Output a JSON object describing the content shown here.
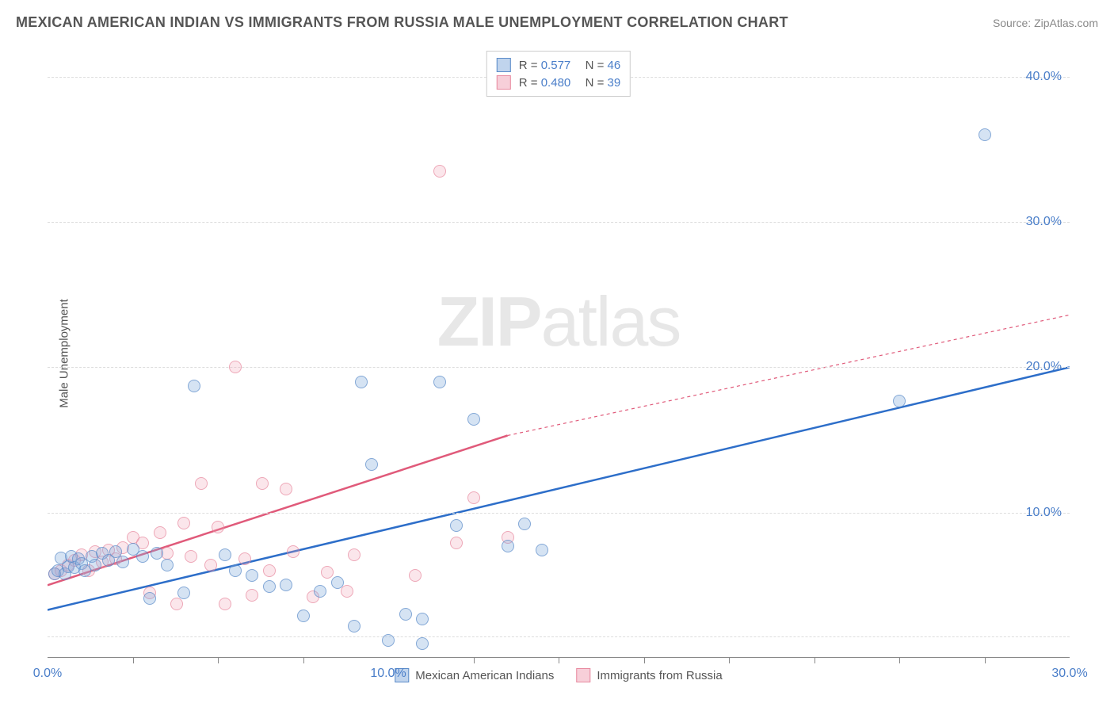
{
  "title": "MEXICAN AMERICAN INDIAN VS IMMIGRANTS FROM RUSSIA MALE UNEMPLOYMENT CORRELATION CHART",
  "source_label": "Source: ",
  "source_name": "ZipAtlas.com",
  "y_axis_label": "Male Unemployment",
  "watermark_bold": "ZIP",
  "watermark_rest": "atlas",
  "chart": {
    "type": "scatter",
    "xlim": [
      0,
      30
    ],
    "ylim": [
      0,
      42
    ],
    "x_ticks": [
      0,
      10,
      30
    ],
    "x_tick_labels": [
      "0.0%",
      "10.0%",
      "30.0%"
    ],
    "x_minor_ticks": [
      2.5,
      5,
      7.5,
      12.5,
      15,
      17.5,
      20,
      22.5,
      25,
      27.5
    ],
    "y_gridlines": [
      1.5,
      10,
      20,
      30,
      40
    ],
    "y_tick_labels": [
      "",
      "10.0%",
      "20.0%",
      "30.0%",
      "40.0%"
    ],
    "background_color": "#ffffff",
    "grid_color": "#dddddd",
    "axis_color": "#888888",
    "tick_label_color": "#4a7ec9",
    "axis_label_color": "#555555"
  },
  "legend_top": {
    "rows": [
      {
        "swatch": "blue",
        "r_label": "R = ",
        "r_value": "0.577",
        "n_label": "N = ",
        "n_value": "46"
      },
      {
        "swatch": "pink",
        "r_label": "R = ",
        "r_value": "0.480",
        "n_label": "N = ",
        "n_value": "39"
      }
    ]
  },
  "legend_bottom": {
    "items": [
      {
        "swatch": "blue",
        "label": "Mexican American Indians"
      },
      {
        "swatch": "pink",
        "label": "Immigrants from Russia"
      }
    ]
  },
  "series": {
    "blue": {
      "color_fill": "rgba(130,170,220,0.45)",
      "color_stroke": "#5a8bc9",
      "marker_size_px": 16,
      "trend": {
        "x1": 0,
        "y1": 3.3,
        "x2": 30,
        "y2": 20.0,
        "color": "#2d6ec9",
        "width": 2.5,
        "dash": "none"
      },
      "points": [
        [
          0.2,
          5.8
        ],
        [
          0.3,
          6.0
        ],
        [
          0.4,
          6.9
        ],
        [
          0.5,
          5.8
        ],
        [
          0.6,
          6.3
        ],
        [
          0.7,
          7.0
        ],
        [
          0.8,
          6.2
        ],
        [
          0.9,
          6.8
        ],
        [
          1.0,
          6.5
        ],
        [
          1.1,
          6.0
        ],
        [
          1.3,
          7.0
        ],
        [
          1.4,
          6.4
        ],
        [
          1.6,
          7.2
        ],
        [
          1.8,
          6.7
        ],
        [
          2.0,
          7.3
        ],
        [
          2.2,
          6.6
        ],
        [
          2.5,
          7.5
        ],
        [
          2.8,
          7.0
        ],
        [
          3.0,
          4.1
        ],
        [
          3.2,
          7.2
        ],
        [
          3.5,
          6.4
        ],
        [
          4.0,
          4.5
        ],
        [
          4.3,
          18.7
        ],
        [
          5.2,
          7.1
        ],
        [
          5.5,
          6.0
        ],
        [
          6.0,
          5.7
        ],
        [
          6.5,
          4.9
        ],
        [
          7.0,
          5.0
        ],
        [
          7.5,
          2.9
        ],
        [
          8.0,
          4.6
        ],
        [
          8.5,
          5.2
        ],
        [
          9.0,
          2.2
        ],
        [
          9.2,
          19.0
        ],
        [
          9.5,
          13.3
        ],
        [
          10.0,
          1.2
        ],
        [
          10.5,
          3.0
        ],
        [
          11.0,
          2.7
        ],
        [
          11.0,
          1.0
        ],
        [
          11.5,
          19.0
        ],
        [
          12.0,
          9.1
        ],
        [
          12.5,
          16.4
        ],
        [
          13.5,
          7.7
        ],
        [
          14.0,
          9.2
        ],
        [
          14.5,
          7.4
        ],
        [
          25.0,
          17.7
        ],
        [
          27.5,
          36.0
        ]
      ]
    },
    "pink": {
      "color_fill": "rgba(240,160,180,0.35)",
      "color_stroke": "#e88aa0",
      "marker_size_px": 16,
      "trend": {
        "x1": 0,
        "y1": 5.0,
        "x2": 13.5,
        "y2": 15.3,
        "color": "#e05a7a",
        "width": 2.5,
        "dash": "none",
        "ext_x2": 30,
        "ext_y2": 23.6,
        "ext_dash": "4,4"
      },
      "points": [
        [
          0.2,
          5.8
        ],
        [
          0.4,
          6.0
        ],
        [
          0.6,
          6.4
        ],
        [
          0.8,
          6.7
        ],
        [
          1.0,
          7.1
        ],
        [
          1.2,
          6.0
        ],
        [
          1.4,
          7.3
        ],
        [
          1.6,
          6.6
        ],
        [
          1.8,
          7.4
        ],
        [
          2.0,
          6.8
        ],
        [
          2.2,
          7.6
        ],
        [
          2.5,
          8.3
        ],
        [
          2.8,
          7.9
        ],
        [
          3.0,
          4.5
        ],
        [
          3.3,
          8.6
        ],
        [
          3.5,
          7.2
        ],
        [
          3.8,
          3.7
        ],
        [
          4.0,
          9.3
        ],
        [
          4.2,
          7.0
        ],
        [
          4.5,
          12.0
        ],
        [
          4.8,
          6.4
        ],
        [
          5.0,
          9.0
        ],
        [
          5.2,
          3.7
        ],
        [
          5.5,
          20.0
        ],
        [
          5.8,
          6.8
        ],
        [
          6.0,
          4.3
        ],
        [
          6.3,
          12.0
        ],
        [
          6.5,
          6.0
        ],
        [
          7.0,
          11.6
        ],
        [
          7.2,
          7.3
        ],
        [
          7.8,
          4.2
        ],
        [
          8.2,
          5.9
        ],
        [
          8.8,
          4.6
        ],
        [
          9.0,
          7.1
        ],
        [
          10.8,
          5.7
        ],
        [
          11.5,
          33.5
        ],
        [
          12.0,
          7.9
        ],
        [
          12.5,
          11.0
        ],
        [
          13.5,
          8.3
        ]
      ]
    }
  }
}
